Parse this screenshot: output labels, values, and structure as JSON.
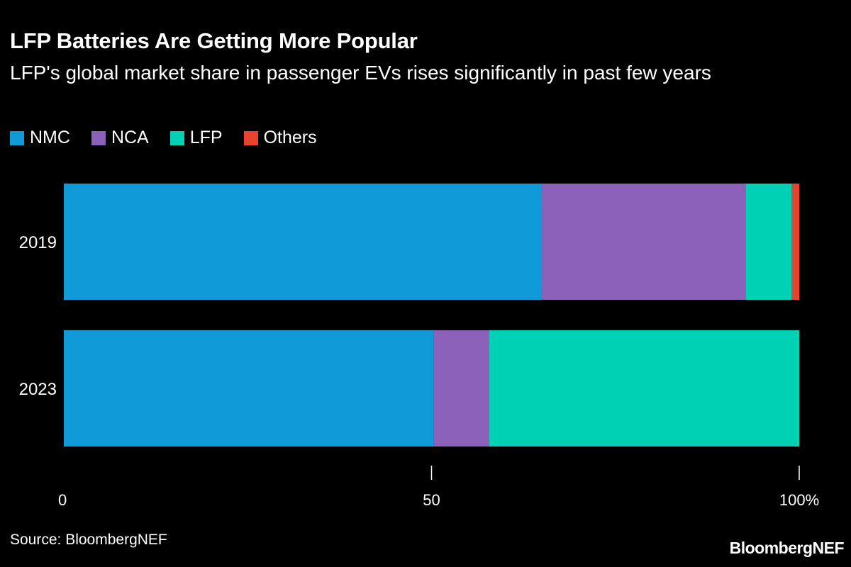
{
  "chart_data": {
    "type": "bar",
    "orientation": "horizontal",
    "stacked": true,
    "title": "LFP Batteries Are Getting More Popular",
    "subtitle": "LFP's global market share in passenger EVs rises significantly in past few years",
    "categories": [
      "2019",
      "2023"
    ],
    "series": [
      {
        "name": "NMC",
        "color": "#109ad7",
        "values": [
          65,
          50.3
        ]
      },
      {
        "name": "NCA",
        "color": "#8b61b9",
        "values": [
          27.7,
          7.5
        ]
      },
      {
        "name": "LFP",
        "color": "#00d1b4",
        "values": [
          6.3,
          42.2
        ]
      },
      {
        "name": "Others",
        "color": "#e8432f",
        "values": [
          1.0,
          0.0
        ]
      }
    ],
    "xlim": [
      0,
      100
    ],
    "xticks": [
      "0",
      "50",
      "100%"
    ],
    "grid": false,
    "legend_position": "top-left"
  },
  "footer": {
    "source": "Source: BloombergNEF",
    "logo_text": "BloombergNEF"
  },
  "colors": {
    "background": "#000000",
    "text": "#ffffff"
  }
}
